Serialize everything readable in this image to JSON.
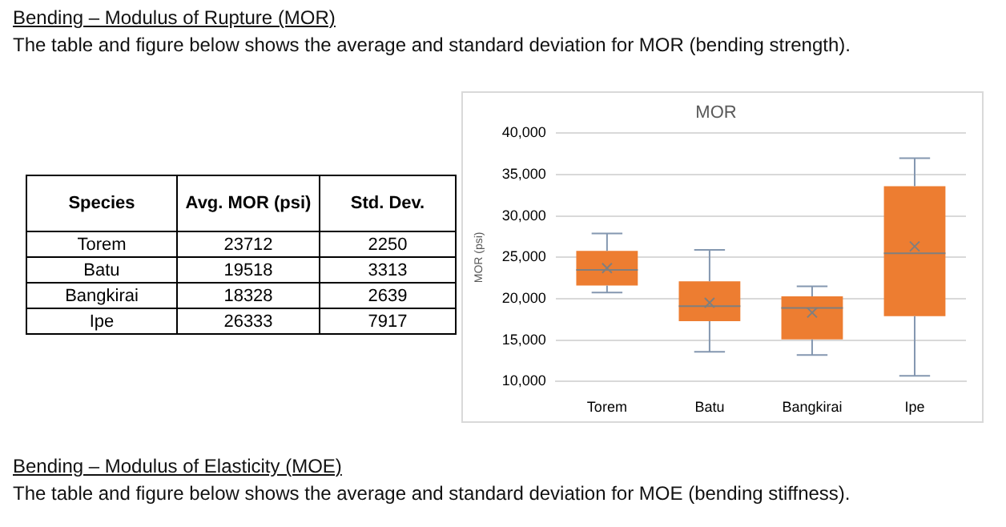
{
  "chart_data": {
    "type": "box",
    "title": "MOR",
    "ylabel": "MOR (psi)",
    "categories": [
      "Torem",
      "Batu",
      "Bangkirai",
      "Ipe"
    ],
    "boxes": [
      {
        "low": 20750,
        "q1": 21600,
        "median": 23500,
        "q3": 25800,
        "high": 27900,
        "mean": 23712
      },
      {
        "low": 13600,
        "q1": 17300,
        "median": 19100,
        "q3": 22100,
        "high": 25900,
        "mean": 19518
      },
      {
        "low": 13200,
        "q1": 15100,
        "median": 18900,
        "q3": 20300,
        "high": 21500,
        "mean": 18328
      },
      {
        "low": 10700,
        "q1": 17900,
        "median": 25500,
        "q3": 33600,
        "high": 37000,
        "mean": 26333
      }
    ],
    "color": "#ed7d31",
    "ylim": [
      10000,
      40000
    ],
    "yticks": [
      {
        "value": 10000,
        "label": "10,000"
      },
      {
        "value": 15000,
        "label": "15,000"
      },
      {
        "value": 20000,
        "label": "20,000"
      },
      {
        "value": 25000,
        "label": "25,000"
      },
      {
        "value": 30000,
        "label": "30,000"
      },
      {
        "value": 35000,
        "label": "35,000"
      },
      {
        "value": 40000,
        "label": "40,000"
      }
    ],
    "grid": "y",
    "legend": false,
    "marker": "cross",
    "annotations": [
      "Bending – Modulus of Rupture (MOR)",
      "The table and figure below shows the average and standard deviation for MOR (bending strength).",
      "Species",
      "Avg. MOR (psi)",
      "Std. Dev.",
      "23712",
      "19518",
      "18328",
      "26333",
      "2250",
      "3313",
      "2639",
      "7917",
      "Bending – Modulus of Elasticity (MOE)",
      "The table and figure below shows the average and standard deviation for MOE (bending stiffness)."
    ]
  }
}
